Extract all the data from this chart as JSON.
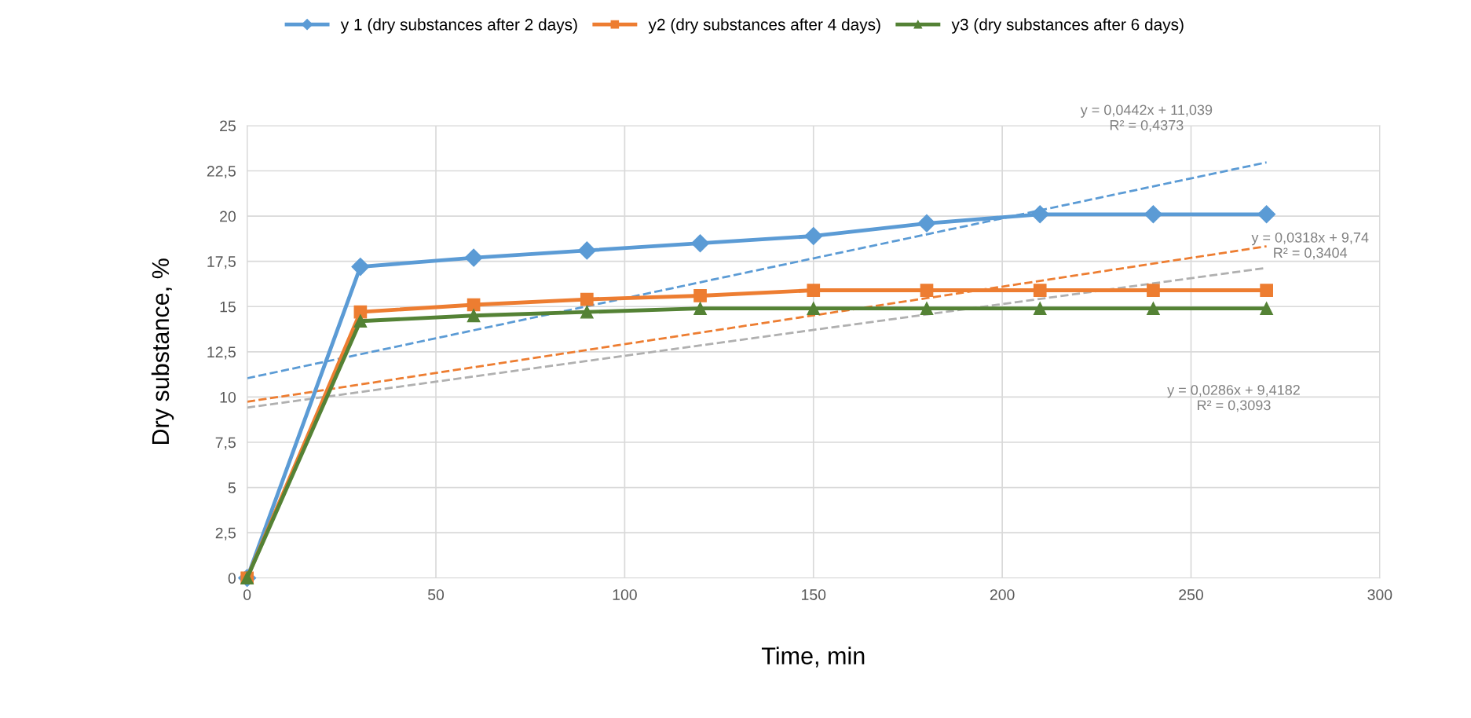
{
  "chart_data": {
    "type": "line",
    "xlabel": "Time, min",
    "ylabel": "Dry substance, %",
    "x": [
      0,
      30,
      60,
      90,
      120,
      150,
      180,
      210,
      240,
      270
    ],
    "series": [
      {
        "name": "y 1 (dry substances after 2 days)",
        "color": "#5b9bd5",
        "marker": "diamond",
        "values": [
          0,
          17.2,
          17.7,
          18.1,
          18.5,
          18.9,
          19.6,
          20.1,
          20.1,
          20.1
        ]
      },
      {
        "name": "y2 (dry substances after 4 days)",
        "color": "#ed7d31",
        "marker": "square",
        "values": [
          0,
          14.7,
          15.1,
          15.4,
          15.6,
          15.9,
          15.9,
          15.9,
          15.9,
          15.9
        ]
      },
      {
        "name": "y3 (dry substances after 6 days)",
        "color": "#548235",
        "marker": "triangle",
        "values": [
          0,
          14.2,
          14.5,
          14.7,
          14.9,
          14.9,
          14.9,
          14.9,
          14.9,
          14.9
        ]
      },
      {
        "type": "line",
        "color": "#5b9bd5",
        "marker": "none",
        "line_style": "dashed",
        "values": [
          11.04,
          null,
          null,
          null,
          null,
          null,
          null,
          null,
          null,
          22.97
        ]
      },
      {
        "type": "line",
        "color": "#ed7d31",
        "marker": "none",
        "line_style": "dashed",
        "values": [
          9.74,
          null,
          null,
          null,
          null,
          null,
          null,
          null,
          null,
          18.33
        ]
      },
      {
        "type": "line",
        "color": "#b0b0b0",
        "marker": "none",
        "line_style": "dashed",
        "values": [
          9.42,
          null,
          null,
          null,
          null,
          null,
          null,
          null,
          null,
          17.14
        ]
      }
    ],
    "annotations": [
      "y = 0,0442x + 11,039\nR² = 0,4373",
      "y = 0,0318x + 9,74\nR² = 0,3404",
      "y = 0,0286x + 9,4182\nR² = 0,3093"
    ],
    "xlim": [
      0,
      300
    ],
    "xticks": [
      0,
      50,
      100,
      150,
      200,
      250,
      300
    ],
    "ylim": [
      0,
      25
    ],
    "yticks": [
      0,
      {
        "value": 2.5,
        "label": "2,5"
      },
      5,
      {
        "value": 7.5,
        "label": "7,5"
      },
      10,
      {
        "value": 12.5,
        "label": "12,5"
      },
      15,
      {
        "value": 17.5,
        "label": "17,5"
      },
      20,
      {
        "value": 22.5,
        "label": "22,5"
      },
      25
    ],
    "grid": true,
    "legend": "top"
  }
}
